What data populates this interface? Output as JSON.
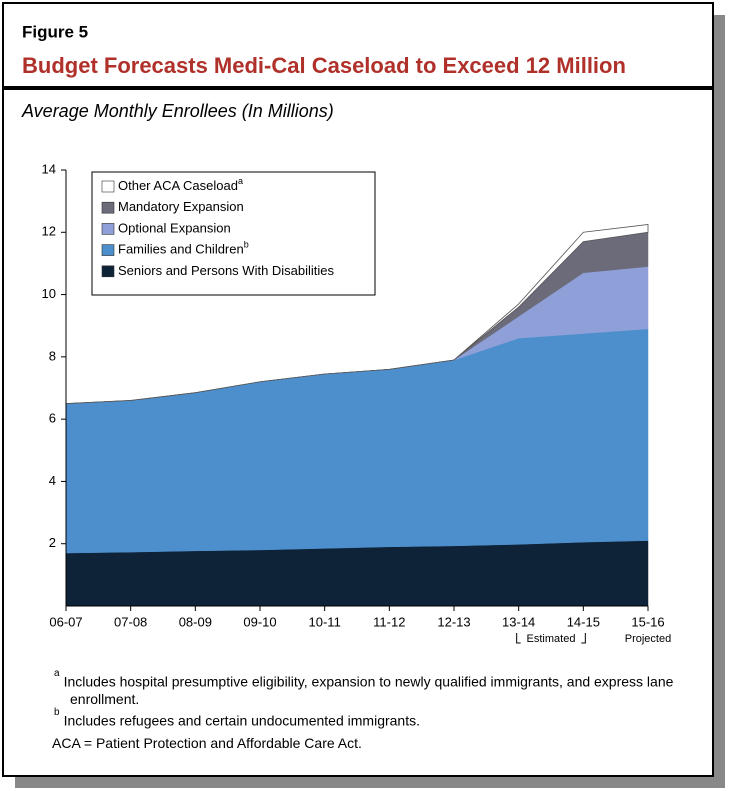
{
  "chart_data": {
    "type": "stacked_area",
    "figure_label": "Figure 5",
    "title": "Budget Forecasts Medi-Cal Caseload to Exceed 12 Million",
    "subtitle": "Average Monthly Enrollees (In Millions)",
    "categories": [
      "06-07",
      "07-08",
      "08-09",
      "09-10",
      "10-11",
      "11-12",
      "12-13",
      "13-14",
      "14-15",
      "15-16"
    ],
    "series": [
      {
        "name": "Seniors and Persons With Disabilities",
        "color": "#0e2238",
        "values": [
          1.7,
          1.73,
          1.77,
          1.8,
          1.85,
          1.9,
          1.93,
          1.98,
          2.05,
          2.1
        ]
      },
      {
        "name": "Families and Children",
        "footnote": "b",
        "color": "#4d8fcc",
        "values": [
          4.8,
          4.87,
          5.08,
          5.4,
          5.6,
          5.7,
          5.97,
          6.62,
          6.7,
          6.8
        ]
      },
      {
        "name": "Optional Expansion",
        "color": "#8fa0d8",
        "values": [
          0,
          0,
          0,
          0,
          0,
          0,
          0,
          0.7,
          1.95,
          2.0
        ]
      },
      {
        "name": "Mandatory Expansion",
        "color": "#6b6b7a",
        "values": [
          0,
          0,
          0,
          0,
          0,
          0,
          0,
          0.3,
          1.0,
          1.1
        ]
      },
      {
        "name": "Other ACA Caseload",
        "footnote": "a",
        "color": "#ffffff",
        "values": [
          0,
          0,
          0,
          0,
          0,
          0,
          0,
          0.1,
          0.3,
          0.25
        ]
      }
    ],
    "ylim": [
      0,
      14
    ],
    "yticks": [
      2,
      4,
      6,
      8,
      10,
      12,
      14
    ],
    "period_labels": {
      "estimated": "Estimated",
      "projected": "Projected"
    },
    "footnotes": [
      {
        "marker": "a",
        "text": "Includes hospital presumptive eligibility, expansion to newly qualified immigrants, and express lane enrollment."
      },
      {
        "marker": "b",
        "text": "Includes refugees and certain undocumented immigrants."
      }
    ],
    "note": "ACA = Patient Protection and Affordable Care Act."
  }
}
